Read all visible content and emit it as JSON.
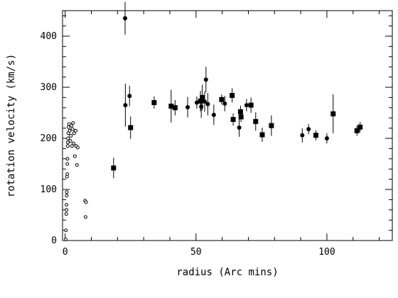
{
  "chart_data": {
    "type": "scatter",
    "title": "",
    "xlabel": "radius (Arc mins)",
    "ylabel": "rotation velocity (km/s)",
    "xlim": [
      -1,
      125
    ],
    "ylim": [
      0,
      450
    ],
    "xticks": [
      0,
      50,
      100
    ],
    "yticks": [
      0,
      100,
      200,
      300,
      400
    ],
    "grid": false,
    "legend": "none",
    "colors": {
      "axis": "#000000",
      "marker": "#000000",
      "open_marker_fill": "#ffffff"
    },
    "series": [
      {
        "marker": "open-circle",
        "points": [
          {
            "x": 0.2,
            "y": 2
          },
          {
            "x": 0.3,
            "y": 20
          },
          {
            "x": 0.4,
            "y": 52
          },
          {
            "x": 0.5,
            "y": 60
          },
          {
            "x": 0.5,
            "y": 70
          },
          {
            "x": 0.6,
            "y": 88
          },
          {
            "x": 0.6,
            "y": 95
          },
          {
            "x": 0.7,
            "y": 125
          },
          {
            "x": 0.8,
            "y": 130
          },
          {
            "x": 0.8,
            "y": 150
          },
          {
            "x": 0.9,
            "y": 160
          },
          {
            "x": 1.0,
            "y": 185
          },
          {
            "x": 1.0,
            "y": 192
          },
          {
            "x": 1.1,
            "y": 200
          },
          {
            "x": 1.2,
            "y": 210
          },
          {
            "x": 1.3,
            "y": 222
          },
          {
            "x": 1.5,
            "y": 228
          },
          {
            "x": 1.7,
            "y": 215
          },
          {
            "x": 2.0,
            "y": 195
          },
          {
            "x": 2.2,
            "y": 205
          },
          {
            "x": 2.4,
            "y": 225
          },
          {
            "x": 2.6,
            "y": 185
          },
          {
            "x": 2.8,
            "y": 218
          },
          {
            "x": 3.0,
            "y": 230
          },
          {
            "x": 3.2,
            "y": 190
          },
          {
            "x": 3.4,
            "y": 210
          },
          {
            "x": 3.7,
            "y": 165
          },
          {
            "x": 4.0,
            "y": 215
          },
          {
            "x": 4.2,
            "y": 185
          },
          {
            "x": 4.5,
            "y": 148
          },
          {
            "x": 4.8,
            "y": 182
          },
          {
            "x": 7.6,
            "y": 78
          },
          {
            "x": 8.0,
            "y": 75
          },
          {
            "x": 7.8,
            "y": 46
          }
        ]
      },
      {
        "marker": "filled-circle",
        "points": [
          {
            "x": 22.9,
            "y": 435,
            "err": 32
          },
          {
            "x": 23.0,
            "y": 265,
            "err": 42
          },
          {
            "x": 24.6,
            "y": 283,
            "err": 20
          },
          {
            "x": 46.8,
            "y": 261,
            "err": 20
          },
          {
            "x": 50.3,
            "y": 270,
            "err": 12
          },
          {
            "x": 52.0,
            "y": 262,
            "err": 22
          },
          {
            "x": 53.3,
            "y": 272,
            "err": 20
          },
          {
            "x": 53.8,
            "y": 315,
            "err": 25
          },
          {
            "x": 54.5,
            "y": 267,
            "err": 22
          },
          {
            "x": 56.8,
            "y": 246,
            "err": 20
          },
          {
            "x": 61.0,
            "y": 268,
            "err": 15
          },
          {
            "x": 66.5,
            "y": 221,
            "err": 18
          },
          {
            "x": 69.3,
            "y": 265,
            "err": 12
          },
          {
            "x": 90.6,
            "y": 206,
            "err": 14
          },
          {
            "x": 93.0,
            "y": 218,
            "err": 10
          },
          {
            "x": 100.0,
            "y": 200,
            "err": 10
          }
        ]
      },
      {
        "marker": "filled-square",
        "points": [
          {
            "x": 18.5,
            "y": 142,
            "err": 20
          },
          {
            "x": 25.0,
            "y": 221,
            "err": 22
          },
          {
            "x": 34.0,
            "y": 270,
            "err": 12
          },
          {
            "x": 40.5,
            "y": 263,
            "err": 32
          },
          {
            "x": 42.0,
            "y": 260,
            "err": 15
          },
          {
            "x": 51.7,
            "y": 273,
            "err": 20
          },
          {
            "x": 52.4,
            "y": 280,
            "err": 25
          },
          {
            "x": 59.8,
            "y": 276,
            "err": 10
          },
          {
            "x": 63.8,
            "y": 284,
            "err": 14
          },
          {
            "x": 64.2,
            "y": 237,
            "err": 12
          },
          {
            "x": 67.0,
            "y": 252,
            "err": 12
          },
          {
            "x": 67.2,
            "y": 242,
            "err": 10
          },
          {
            "x": 71.0,
            "y": 265,
            "err": 15
          },
          {
            "x": 72.8,
            "y": 233,
            "err": 18
          },
          {
            "x": 75.3,
            "y": 207,
            "err": 14
          },
          {
            "x": 78.8,
            "y": 225,
            "err": 20
          },
          {
            "x": 95.8,
            "y": 206,
            "err": 10
          },
          {
            "x": 102.4,
            "y": 248,
            "err": 38
          },
          {
            "x": 111.5,
            "y": 215,
            "err": 10
          },
          {
            "x": 112.7,
            "y": 222,
            "err": 10
          }
        ]
      }
    ]
  }
}
